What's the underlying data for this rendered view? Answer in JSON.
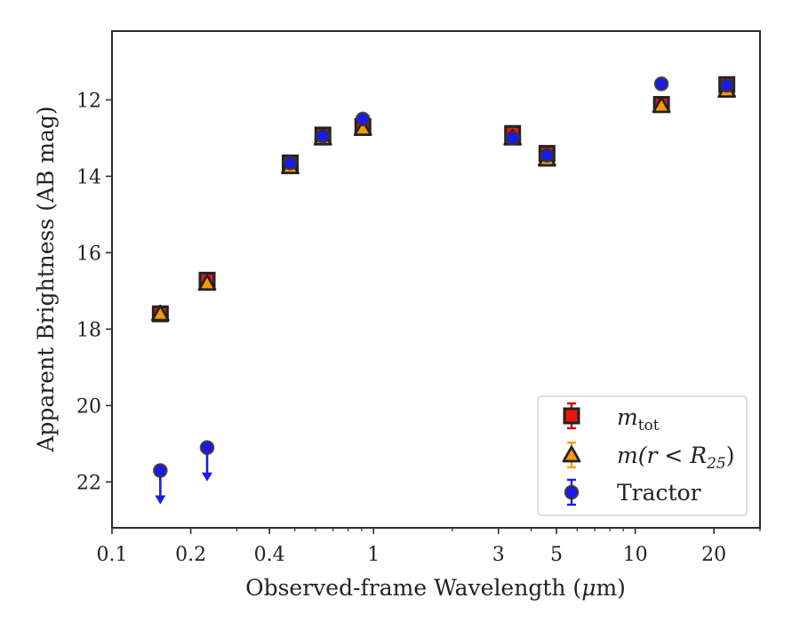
{
  "chart_data": {
    "type": "scatter",
    "xlabel_prefix": "Observed-frame Wavelength (",
    "xlabel_unit_mu": "μ",
    "xlabel_suffix": "m)",
    "ylabel": "Apparent Brightness (AB mag)",
    "xscale": "log",
    "xlim": [
      0.1,
      30
    ],
    "ylim": [
      23.2,
      10.2
    ],
    "y_inverted": true,
    "xticks": [
      {
        "value": 0.1,
        "label": "0.1"
      },
      {
        "value": 0.2,
        "label": "0.2"
      },
      {
        "value": 0.4,
        "label": "0.4"
      },
      {
        "value": 1,
        "label": "1"
      },
      {
        "value": 3,
        "label": "3"
      },
      {
        "value": 5,
        "label": "5"
      },
      {
        "value": 10,
        "label": "10"
      },
      {
        "value": 20,
        "label": "20"
      }
    ],
    "yticks": [
      {
        "value": 12,
        "label": "12"
      },
      {
        "value": 14,
        "label": "14"
      },
      {
        "value": 16,
        "label": "16"
      },
      {
        "value": 18,
        "label": "18"
      },
      {
        "value": 20,
        "label": "20"
      },
      {
        "value": 22,
        "label": "22"
      }
    ],
    "legend_position": "lower-right",
    "series": [
      {
        "name": "m_tot",
        "label_main": "m",
        "label_sub": "tot",
        "marker": "square",
        "color": "#e8160c",
        "edge": "#222222",
        "errcolor": "#cc0000",
        "points": [
          {
            "x": 0.153,
            "y": 17.6
          },
          {
            "x": 0.231,
            "y": 16.72
          },
          {
            "x": 0.48,
            "y": 13.65
          },
          {
            "x": 0.64,
            "y": 12.92
          },
          {
            "x": 0.91,
            "y": 12.7
          },
          {
            "x": 3.4,
            "y": 12.88
          },
          {
            "x": 4.6,
            "y": 13.4
          },
          {
            "x": 12.6,
            "y": 12.12
          },
          {
            "x": 22.4,
            "y": 11.6
          }
        ]
      },
      {
        "name": "m(r<R25)",
        "label_main": "m(r < R",
        "label_sub": "25",
        "label_end": ")",
        "marker": "triangle",
        "color": "#ff9800",
        "edge": "#222222",
        "errcolor": "#f0a000",
        "points": [
          {
            "x": 0.153,
            "y": 17.6
          },
          {
            "x": 0.231,
            "y": 16.8
          },
          {
            "x": 0.48,
            "y": 13.75
          },
          {
            "x": 0.64,
            "y": 13.0
          },
          {
            "x": 0.91,
            "y": 12.75
          },
          {
            "x": 3.4,
            "y": 13.0
          },
          {
            "x": 4.6,
            "y": 13.55
          },
          {
            "x": 12.6,
            "y": 12.15
          },
          {
            "x": 22.4,
            "y": 11.75
          }
        ]
      },
      {
        "name": "Tractor",
        "label_main": "Tractor",
        "marker": "circle",
        "color": "#1a1aee",
        "edge": "#333333",
        "errcolor": "#1a1aee",
        "points": [
          {
            "x": 0.153,
            "y": 21.7,
            "upper_limit": true
          },
          {
            "x": 0.231,
            "y": 21.1,
            "upper_limit": true
          },
          {
            "x": 0.48,
            "y": 13.65
          },
          {
            "x": 0.64,
            "y": 12.95
          },
          {
            "x": 0.91,
            "y": 12.5
          },
          {
            "x": 3.4,
            "y": 13.0
          },
          {
            "x": 4.6,
            "y": 13.45
          },
          {
            "x": 12.6,
            "y": 11.58
          },
          {
            "x": 22.4,
            "y": 11.62
          }
        ]
      }
    ]
  }
}
